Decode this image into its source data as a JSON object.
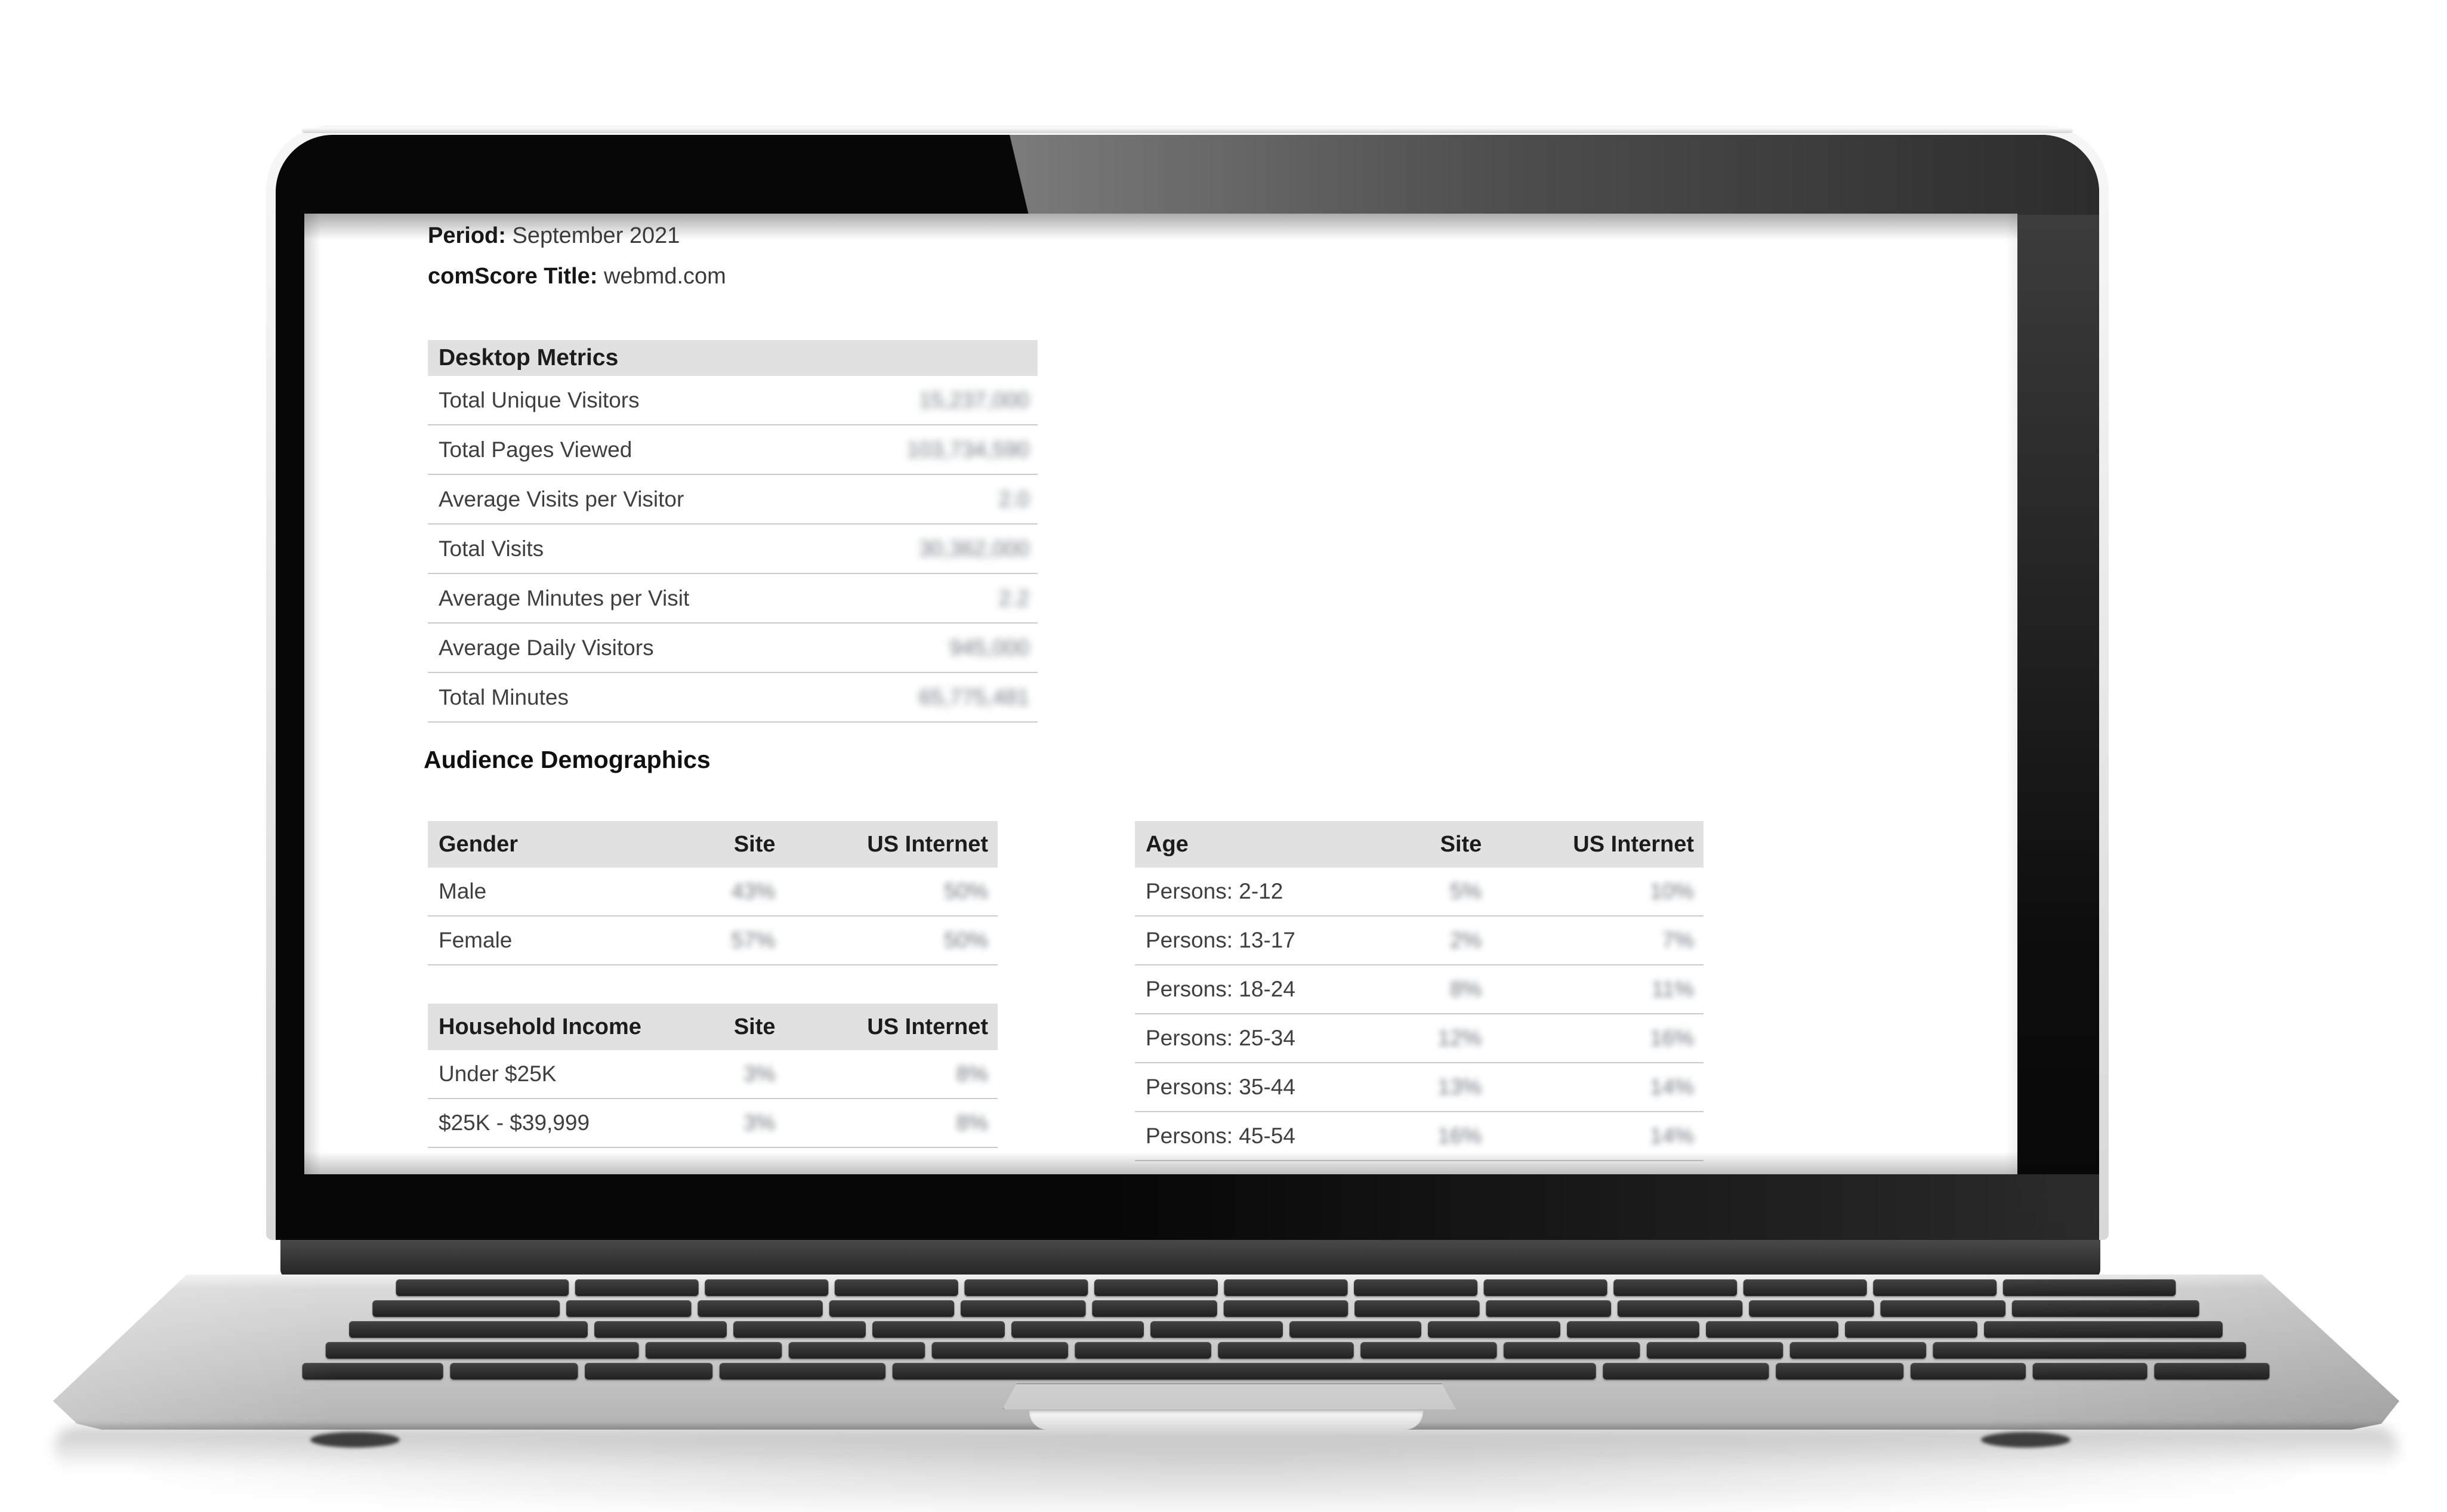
{
  "report": {
    "period_label": "Period:",
    "period_value": "September 2021",
    "title_label": "comScore Title:",
    "title_value": "webmd.com",
    "values_blurred": true
  },
  "desktop_metrics": {
    "header": "Desktop Metrics",
    "rows": [
      {
        "label": "Total Unique Visitors",
        "value": "15,237,000"
      },
      {
        "label": "Total Pages Viewed",
        "value": "103,734,590"
      },
      {
        "label": "Average Visits per Visitor",
        "value": "2.0"
      },
      {
        "label": "Total Visits",
        "value": "30,362,000"
      },
      {
        "label": "Average Minutes per Visit",
        "value": "2.2"
      },
      {
        "label": "Average Daily Visitors",
        "value": "945,000"
      },
      {
        "label": "Total Minutes",
        "value": "65,775,481"
      }
    ]
  },
  "audience_demographics": {
    "title": "Audience Demographics",
    "gender": {
      "headers": [
        "Gender",
        "Site",
        "US Internet"
      ],
      "rows": [
        [
          "Male",
          "43%",
          "50%"
        ],
        [
          "Female",
          "57%",
          "50%"
        ]
      ]
    },
    "household_income": {
      "headers": [
        "Household Income",
        "Site",
        "US Internet"
      ],
      "rows": [
        [
          "Under $25K",
          "3%",
          "8%"
        ],
        [
          "$25K - $39,999",
          "3%",
          "8%"
        ]
      ]
    },
    "age": {
      "headers": [
        "Age",
        "Site",
        "US Internet"
      ],
      "rows": [
        [
          "Persons: 2-12",
          "5%",
          "10%"
        ],
        [
          "Persons: 13-17",
          "2%",
          "7%"
        ],
        [
          "Persons: 18-24",
          "8%",
          "11%"
        ],
        [
          "Persons: 25-34",
          "12%",
          "16%"
        ],
        [
          "Persons: 35-44",
          "13%",
          "14%"
        ],
        [
          "Persons: 45-54",
          "16%",
          "14%"
        ]
      ]
    }
  },
  "colors": {
    "table_header_bg": "#e1e1e1",
    "row_border": "#cacaca",
    "text_primary": "#1c1c1c",
    "text_secondary": "#3f3f3f",
    "blurred_value_tint": "#59626e",
    "bezel_black": "#070707",
    "deck_silver": "#c7c7c7"
  }
}
